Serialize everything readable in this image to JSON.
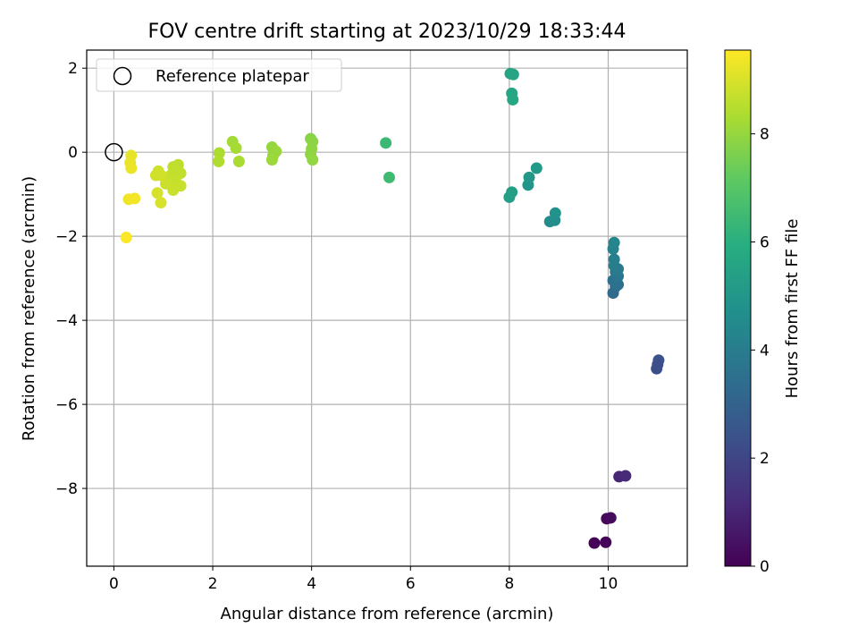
{
  "chart_data": {
    "type": "scatter",
    "title": "FOV centre drift starting at 2023/10/29 18:33:44",
    "xlabel": "Angular distance from reference (arcmin)",
    "ylabel": "Rotation from reference (arcmin)",
    "xlim": [
      -0.55,
      11.6
    ],
    "ylim": [
      -9.85,
      2.43
    ],
    "xticks": [
      0,
      2,
      4,
      6,
      8,
      10
    ],
    "yticks": [
      -8,
      -6,
      -4,
      -2,
      0,
      2
    ],
    "grid": true,
    "legend": {
      "position": "top-left",
      "label": "Reference platepar"
    },
    "reference_point": {
      "x": 0,
      "y": 0
    },
    "colorbar": {
      "label": "Hours from first FF file",
      "range": [
        0,
        9.55
      ],
      "ticks": [
        0,
        2,
        4,
        6,
        8
      ],
      "colormap": "viridis"
    },
    "points": [
      {
        "x": 9.72,
        "y": -9.3,
        "c": 0.05
      },
      {
        "x": 9.95,
        "y": -9.28,
        "c": 0.12
      },
      {
        "x": 9.97,
        "y": -8.72,
        "c": 0.2
      },
      {
        "x": 10.05,
        "y": -8.7,
        "c": 0.28
      },
      {
        "x": 10.22,
        "y": -7.72,
        "c": 1.0
      },
      {
        "x": 10.35,
        "y": -7.7,
        "c": 1.1
      },
      {
        "x": 10.98,
        "y": -5.15,
        "c": 2.25
      },
      {
        "x": 11.02,
        "y": -4.95,
        "c": 2.4
      },
      {
        "x": 11.0,
        "y": -5.05,
        "c": 2.3
      },
      {
        "x": 10.1,
        "y": -3.35,
        "c": 3.3
      },
      {
        "x": 10.15,
        "y": -3.2,
        "c": 3.4
      },
      {
        "x": 10.2,
        "y": -3.15,
        "c": 3.5
      },
      {
        "x": 10.1,
        "y": -3.05,
        "c": 3.6
      },
      {
        "x": 10.2,
        "y": -2.95,
        "c": 3.7
      },
      {
        "x": 10.15,
        "y": -2.85,
        "c": 3.8
      },
      {
        "x": 10.2,
        "y": -2.78,
        "c": 3.9
      },
      {
        "x": 10.12,
        "y": -2.7,
        "c": 4.0
      },
      {
        "x": 10.12,
        "y": -2.55,
        "c": 4.1
      },
      {
        "x": 10.1,
        "y": -2.3,
        "c": 4.2
      },
      {
        "x": 10.12,
        "y": -2.15,
        "c": 4.3
      },
      {
        "x": 8.82,
        "y": -1.65,
        "c": 4.6
      },
      {
        "x": 8.92,
        "y": -1.62,
        "c": 4.7
      },
      {
        "x": 8.93,
        "y": -1.45,
        "c": 4.8
      },
      {
        "x": 8.38,
        "y": -0.78,
        "c": 5.0
      },
      {
        "x": 8.4,
        "y": -0.6,
        "c": 5.05
      },
      {
        "x": 8.55,
        "y": -0.38,
        "c": 5.1
      },
      {
        "x": 8.0,
        "y": -1.07,
        "c": 5.3
      },
      {
        "x": 8.05,
        "y": -0.95,
        "c": 5.35
      },
      {
        "x": 8.02,
        "y": 1.87,
        "c": 5.5
      },
      {
        "x": 8.08,
        "y": 1.85,
        "c": 5.55
      },
      {
        "x": 8.05,
        "y": 1.4,
        "c": 5.6
      },
      {
        "x": 8.07,
        "y": 1.25,
        "c": 5.65
      },
      {
        "x": 5.5,
        "y": 0.22,
        "c": 6.4
      },
      {
        "x": 5.57,
        "y": -0.6,
        "c": 6.5
      },
      {
        "x": 3.98,
        "y": 0.32,
        "c": 7.8
      },
      {
        "x": 4.02,
        "y": 0.25,
        "c": 7.85
      },
      {
        "x": 4.0,
        "y": 0.08,
        "c": 7.9
      },
      {
        "x": 3.98,
        "y": -0.05,
        "c": 7.9
      },
      {
        "x": 4.02,
        "y": -0.18,
        "c": 7.95
      },
      {
        "x": 3.2,
        "y": 0.12,
        "c": 8.0
      },
      {
        "x": 3.28,
        "y": 0.02,
        "c": 8.05
      },
      {
        "x": 3.22,
        "y": -0.08,
        "c": 8.05
      },
      {
        "x": 3.2,
        "y": -0.18,
        "c": 8.1
      },
      {
        "x": 2.4,
        "y": 0.25,
        "c": 8.2
      },
      {
        "x": 2.47,
        "y": 0.1,
        "c": 8.25
      },
      {
        "x": 2.53,
        "y": -0.22,
        "c": 8.3
      },
      {
        "x": 2.13,
        "y": -0.02,
        "c": 8.35
      },
      {
        "x": 2.12,
        "y": -0.22,
        "c": 8.4
      },
      {
        "x": 1.3,
        "y": -0.3,
        "c": 8.6
      },
      {
        "x": 1.2,
        "y": -0.35,
        "c": 8.62
      },
      {
        "x": 1.35,
        "y": -0.5,
        "c": 8.65
      },
      {
        "x": 1.15,
        "y": -0.55,
        "c": 8.68
      },
      {
        "x": 1.1,
        "y": -0.65,
        "c": 8.7
      },
      {
        "x": 1.25,
        "y": -0.7,
        "c": 8.72
      },
      {
        "x": 1.35,
        "y": -0.8,
        "c": 8.75
      },
      {
        "x": 1.2,
        "y": -0.9,
        "c": 8.78
      },
      {
        "x": 1.05,
        "y": -0.75,
        "c": 8.8
      },
      {
        "x": 0.9,
        "y": -0.45,
        "c": 8.85
      },
      {
        "x": 0.85,
        "y": -0.55,
        "c": 8.88
      },
      {
        "x": 0.95,
        "y": -0.55,
        "c": 8.9
      },
      {
        "x": 0.88,
        "y": -0.97,
        "c": 8.95
      },
      {
        "x": 0.95,
        "y": -1.2,
        "c": 9.0
      },
      {
        "x": 0.35,
        "y": -0.08,
        "c": 9.2
      },
      {
        "x": 0.33,
        "y": -0.25,
        "c": 9.25
      },
      {
        "x": 0.35,
        "y": -0.38,
        "c": 9.3
      },
      {
        "x": 0.3,
        "y": -1.12,
        "c": 9.35
      },
      {
        "x": 0.42,
        "y": -1.1,
        "c": 9.4
      },
      {
        "x": 0.25,
        "y": -2.03,
        "c": 9.5
      }
    ]
  }
}
